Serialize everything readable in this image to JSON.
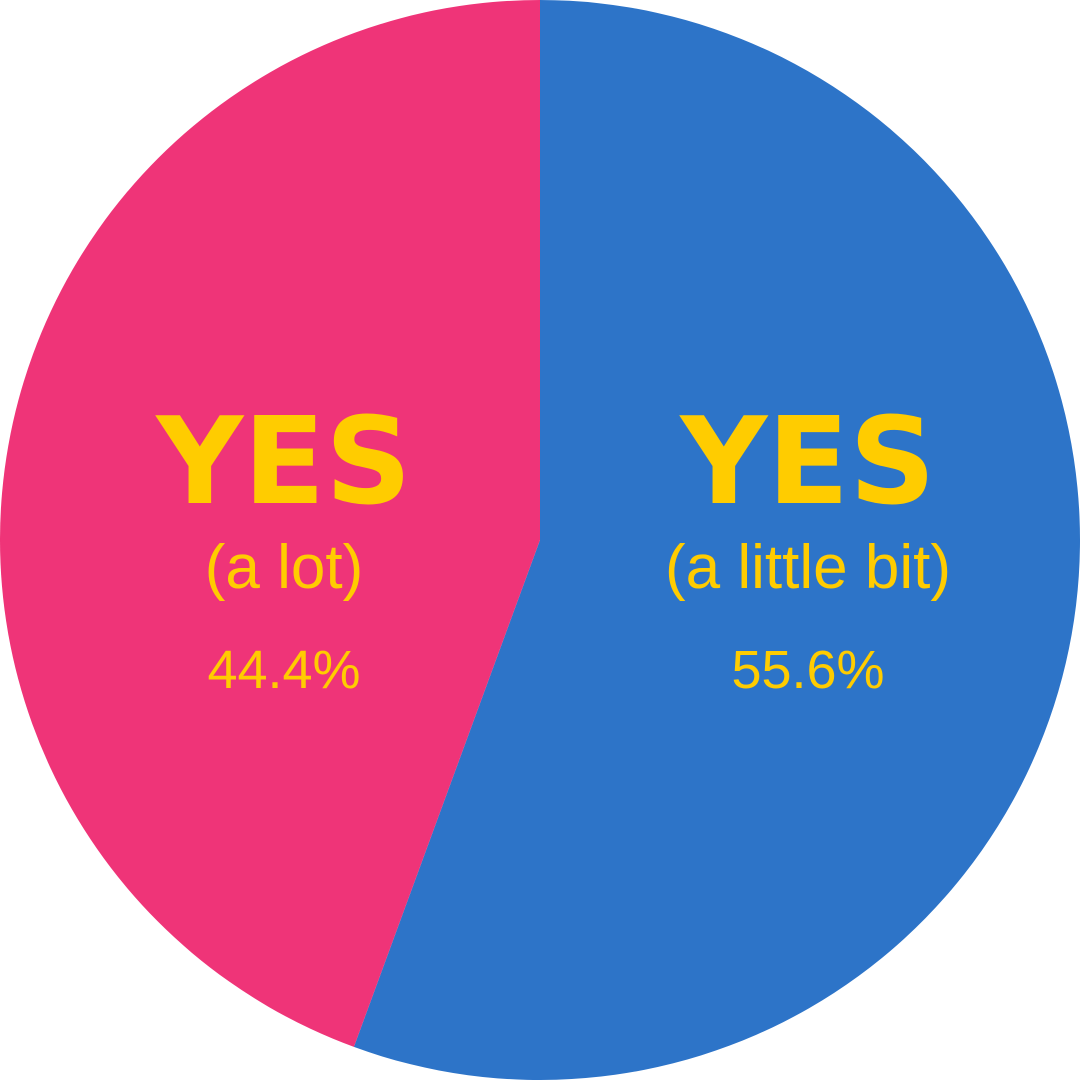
{
  "chart_data": {
    "type": "pie",
    "start_angle": "12 o'clock",
    "direction": "clockwise",
    "label_color": "#FFCC00",
    "slices": [
      {
        "label": "YES",
        "sublabel": "(a little bit)",
        "value": 55.6,
        "value_label": "55.6%",
        "color": "#2D74C8"
      },
      {
        "label": "YES",
        "sublabel": "(a lot)",
        "value": 44.4,
        "value_label": "44.4%",
        "color": "#EF3478"
      }
    ]
  }
}
